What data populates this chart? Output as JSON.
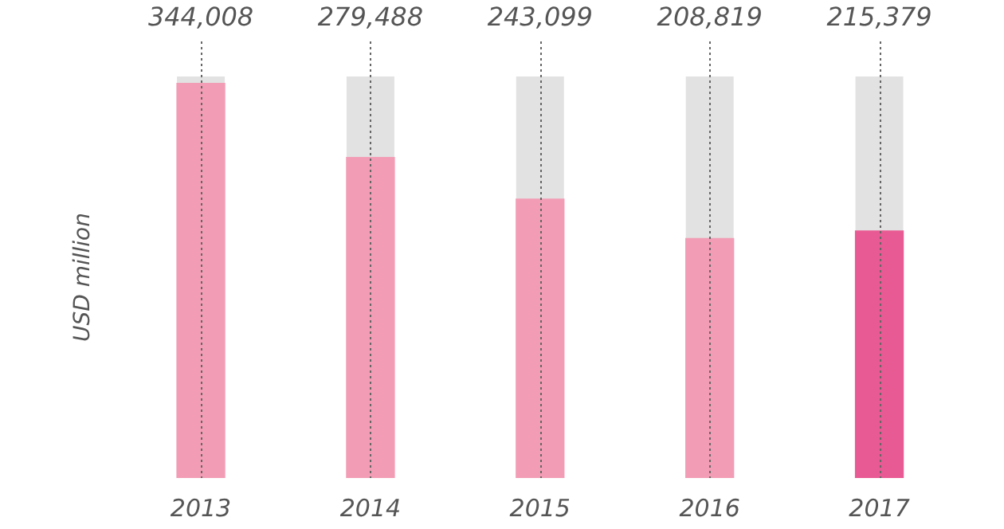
{
  "chart_data": {
    "type": "bar",
    "ylabel": "USD million",
    "categories": [
      "2013",
      "2014",
      "2015",
      "2016",
      "2017"
    ],
    "values": [
      344008,
      279488,
      243099,
      208819,
      215379
    ],
    "value_labels": [
      "344,008",
      "279,488",
      "243,099",
      "208,819",
      "215,379"
    ],
    "colors": [
      "#f29db5",
      "#f29db5",
      "#f29db5",
      "#f29db5",
      "#e85a93"
    ],
    "tick_labels": "x",
    "grid": "x"
  }
}
